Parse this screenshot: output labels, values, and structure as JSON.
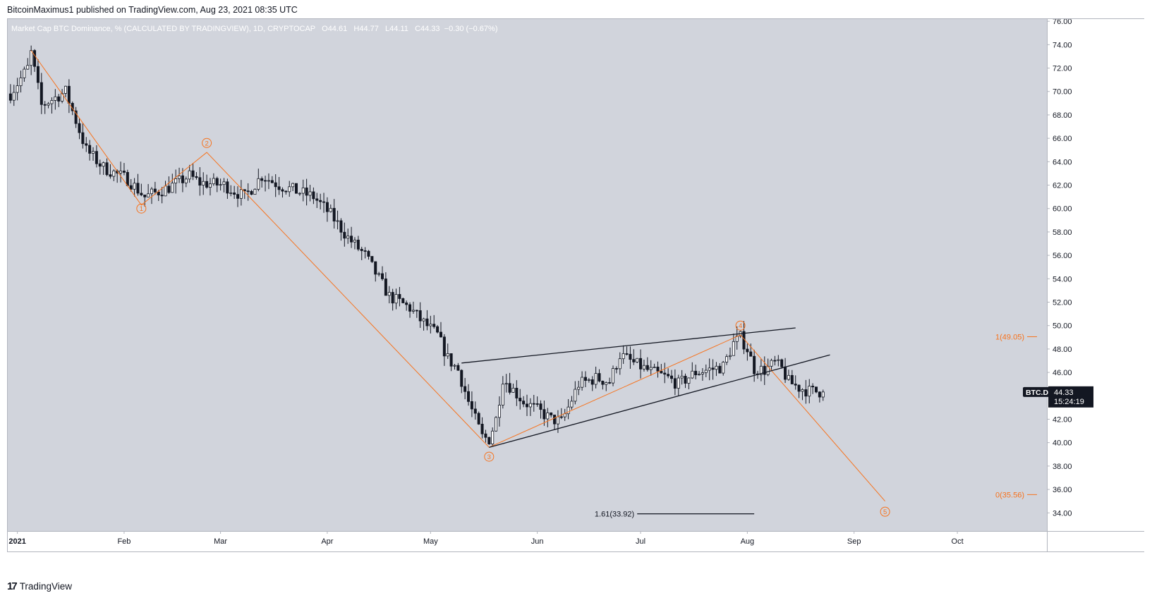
{
  "header": {
    "text": "BitcoinMaximus1 published on TradingView.com, Aug 23, 2021 08:35 UTC"
  },
  "footer": {
    "logo": "17",
    "brand": "TradingView"
  },
  "colors": {
    "plot_bg": "#d1d4dc",
    "candle": "#131722",
    "orange": "#f7731e",
    "line": "#131722"
  },
  "chart_data": {
    "type": "candlestick",
    "title": "Market Cap BTC Dominance, % (CALCULATED BY TRADINGVIEW), 1D, CRYPTOCAP",
    "ohlc_legend": {
      "o_label": "O",
      "o": "44.61",
      "h_label": "H",
      "h": "44.77",
      "l_label": "L",
      "l": "44.11",
      "c_label": "C",
      "c": "44.33",
      "change": "−0.30 (−0.67%)"
    },
    "ylim": [
      34,
      76
    ],
    "y_ticks": [
      "76.00",
      "74.00",
      "72.00",
      "70.00",
      "68.00",
      "66.00",
      "64.00",
      "62.00",
      "60.00",
      "58.00",
      "56.00",
      "54.00",
      "52.00",
      "50.00",
      "48.00",
      "46.00",
      "44.00",
      "42.00",
      "40.00",
      "38.00",
      "36.00",
      "34.00"
    ],
    "x_ticks": [
      {
        "label": "2021",
        "date": "2021-01-01",
        "bold": true
      },
      {
        "label": "Feb",
        "date": "2021-02-01"
      },
      {
        "label": "Mar",
        "date": "2021-03-01"
      },
      {
        "label": "Apr",
        "date": "2021-04-01"
      },
      {
        "label": "May",
        "date": "2021-05-01"
      },
      {
        "label": "Jun",
        "date": "2021-06-01"
      },
      {
        "label": "Jul",
        "date": "2021-07-01"
      },
      {
        "label": "Aug",
        "date": "2021-08-01"
      },
      {
        "label": "Sep",
        "date": "2021-09-01"
      },
      {
        "label": "Oct",
        "date": "2021-10-01"
      }
    ],
    "x_range": [
      "2020-12-29",
      "2021-10-27"
    ],
    "price_keypoints": [
      {
        "date": "2020-12-30",
        "value": 69.8
      },
      {
        "date": "2021-01-04",
        "value": 72.0
      },
      {
        "date": "2021-01-05",
        "value": 73.3
      },
      {
        "date": "2021-01-08",
        "value": 68.8
      },
      {
        "date": "2021-01-15",
        "value": 70.0
      },
      {
        "date": "2021-01-21",
        "value": 65.0
      },
      {
        "date": "2021-01-26",
        "value": 63.5
      },
      {
        "date": "2021-02-02",
        "value": 62.5
      },
      {
        "date": "2021-02-07",
        "value": 61.0
      },
      {
        "date": "2021-02-14",
        "value": 61.8
      },
      {
        "date": "2021-02-20",
        "value": 62.8
      },
      {
        "date": "2021-02-23",
        "value": 62.2
      },
      {
        "date": "2021-03-02",
        "value": 62.0
      },
      {
        "date": "2021-03-08",
        "value": 61.0
      },
      {
        "date": "2021-03-13",
        "value": 62.8
      },
      {
        "date": "2021-03-18",
        "value": 62.0
      },
      {
        "date": "2021-03-28",
        "value": 61.0
      },
      {
        "date": "2021-04-02",
        "value": 59.5
      },
      {
        "date": "2021-04-07",
        "value": 57.5
      },
      {
        "date": "2021-04-12",
        "value": 56.0
      },
      {
        "date": "2021-04-16",
        "value": 54.0
      },
      {
        "date": "2021-04-19",
        "value": 52.5
      },
      {
        "date": "2021-04-25",
        "value": 51.5
      },
      {
        "date": "2021-04-28",
        "value": 50.5
      },
      {
        "date": "2021-05-03",
        "value": 49.2
      },
      {
        "date": "2021-05-06",
        "value": 47.2
      },
      {
        "date": "2021-05-09",
        "value": 46.2
      },
      {
        "date": "2021-05-12",
        "value": 43.5
      },
      {
        "date": "2021-05-16",
        "value": 40.5
      },
      {
        "date": "2021-05-18",
        "value": 40.3
      },
      {
        "date": "2021-05-20",
        "value": 42.0
      },
      {
        "date": "2021-05-22",
        "value": 45.5
      },
      {
        "date": "2021-05-25",
        "value": 44.5
      },
      {
        "date": "2021-05-28",
        "value": 43.5
      },
      {
        "date": "2021-06-01",
        "value": 42.8
      },
      {
        "date": "2021-06-05",
        "value": 42.0
      },
      {
        "date": "2021-06-08",
        "value": 41.8
      },
      {
        "date": "2021-06-10",
        "value": 43.0
      },
      {
        "date": "2021-06-13",
        "value": 45.0
      },
      {
        "date": "2021-06-18",
        "value": 45.5
      },
      {
        "date": "2021-06-22",
        "value": 45.2
      },
      {
        "date": "2021-06-25",
        "value": 47.5
      },
      {
        "date": "2021-06-29",
        "value": 46.8
      },
      {
        "date": "2021-07-03",
        "value": 46.2
      },
      {
        "date": "2021-07-09",
        "value": 45.5
      },
      {
        "date": "2021-07-12",
        "value": 45.0
      },
      {
        "date": "2021-07-17",
        "value": 46.0
      },
      {
        "date": "2021-07-22",
        "value": 46.3
      },
      {
        "date": "2021-07-25",
        "value": 46.5
      },
      {
        "date": "2021-07-28",
        "value": 48.5
      },
      {
        "date": "2021-07-30",
        "value": 49.0
      },
      {
        "date": "2021-08-01",
        "value": 48.0
      },
      {
        "date": "2021-08-03",
        "value": 46.3
      },
      {
        "date": "2021-08-06",
        "value": 46.2
      },
      {
        "date": "2021-08-09",
        "value": 46.8
      },
      {
        "date": "2021-08-11",
        "value": 46.3
      },
      {
        "date": "2021-08-13",
        "value": 45.2
      },
      {
        "date": "2021-08-16",
        "value": 44.7
      },
      {
        "date": "2021-08-19",
        "value": 44.4
      },
      {
        "date": "2021-08-23",
        "value": 44.33
      }
    ],
    "wedge_lines": [
      {
        "name": "upper",
        "from": {
          "date": "2021-05-10",
          "value": 46.8
        },
        "to": {
          "date": "2021-08-15",
          "value": 49.8
        }
      },
      {
        "name": "lower",
        "from": {
          "date": "2021-05-18",
          "value": 39.6
        },
        "to": {
          "date": "2021-08-25",
          "value": 47.5
        }
      }
    ],
    "wave_path": [
      {
        "date": "2021-01-05",
        "value": 73.5
      },
      {
        "date": "2021-02-06",
        "value": 60.3
      },
      {
        "date": "2021-02-25",
        "value": 64.8
      },
      {
        "date": "2021-05-18",
        "value": 39.6
      },
      {
        "date": "2021-07-30",
        "value": 49.2
      },
      {
        "date": "2021-09-10",
        "value": 35.0
      }
    ],
    "wave_labels": [
      {
        "label": "1",
        "date": "2021-02-06",
        "value": 60.0
      },
      {
        "label": "2",
        "date": "2021-02-25",
        "value": 65.6
      },
      {
        "label": "3",
        "date": "2021-05-18",
        "value": 38.8
      },
      {
        "label": "4",
        "date": "2021-07-30",
        "value": 50.0
      },
      {
        "label": "5",
        "date": "2021-09-10",
        "value": 34.1
      }
    ],
    "fib_levels": [
      {
        "label": "1(49.05)",
        "value": 49.05
      },
      {
        "label": "0(35.56)",
        "value": 35.56
      }
    ],
    "extension": {
      "label": "1.61(33.92)",
      "value": 33.92,
      "from": "2021-06-30",
      "to": "2021-08-03"
    },
    "price_tag": {
      "symbol": "BTC.D",
      "value": "44.33",
      "countdown": "15:24:19"
    }
  }
}
